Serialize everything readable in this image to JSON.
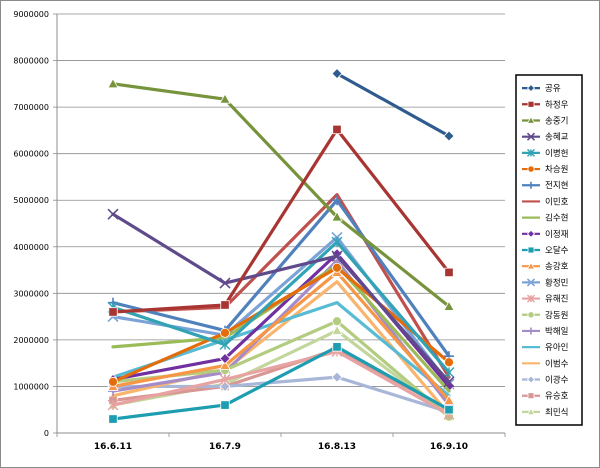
{
  "chart_data": {
    "type": "line",
    "title": "",
    "xlabel": "",
    "ylabel": "",
    "ylim": [
      0,
      9000000
    ],
    "ytick_step": 1000000,
    "grid": true,
    "legend_position": "right",
    "categories": [
      "16.6.11",
      "16.7.9",
      "16.8.13",
      "16.9.10"
    ],
    "series": [
      {
        "name": "공유",
        "color": "#2F5B8F",
        "marker": "diamond",
        "values": [
          null,
          null,
          7720000,
          6380000
        ]
      },
      {
        "name": "하정우",
        "color": "#A83531",
        "marker": "square",
        "values": [
          2600000,
          2750000,
          6520000,
          3450000
        ]
      },
      {
        "name": "송중기",
        "color": "#77933C",
        "marker": "triangle",
        "values": [
          7500000,
          7170000,
          4640000,
          2720000
        ]
      },
      {
        "name": "송혜교",
        "color": "#5F4A8B",
        "marker": "x",
        "values": [
          4700000,
          3220000,
          3800000,
          1100000
        ]
      },
      {
        "name": "이병헌",
        "color": "#31A3B5",
        "marker": "asterisk",
        "values": [
          2700000,
          1900000,
          4100000,
          1300000
        ]
      },
      {
        "name": "차승원",
        "color": "#E46C0A",
        "marker": "circle",
        "values": [
          1100000,
          2150000,
          3550000,
          1520000
        ]
      },
      {
        "name": "전지현",
        "color": "#4F81BD",
        "marker": "plus",
        "values": [
          2800000,
          2200000,
          5000000,
          1650000
        ]
      },
      {
        "name": "이민호",
        "color": "#C0504D",
        "marker": "none",
        "values": [
          2600000,
          2700000,
          5120000,
          1200000
        ]
      },
      {
        "name": "김수현",
        "color": "#9BBB59",
        "marker": "none",
        "values": [
          1850000,
          2050000,
          3600000,
          900000
        ]
      },
      {
        "name": "이정재",
        "color": "#7030A0",
        "marker": "diamond",
        "values": [
          1150000,
          1600000,
          3850000,
          1000000
        ]
      },
      {
        "name": "오달수",
        "color": "#1C9DB0",
        "marker": "square",
        "values": [
          300000,
          600000,
          1850000,
          500000
        ]
      },
      {
        "name": "송강호",
        "color": "#F79646",
        "marker": "triangle",
        "values": [
          1000000,
          1450000,
          3450000,
          700000
        ]
      },
      {
        "name": "황정민",
        "color": "#7BA3D8",
        "marker": "x",
        "values": [
          2500000,
          2100000,
          4200000,
          1050000
        ]
      },
      {
        "name": "유해진",
        "color": "#E7A3A1",
        "marker": "asterisk",
        "values": [
          600000,
          1150000,
          1750000,
          400000
        ]
      },
      {
        "name": "강동원",
        "color": "#B3CC80",
        "marker": "circle",
        "values": [
          1100000,
          1350000,
          2400000,
          350000
        ]
      },
      {
        "name": "박해일",
        "color": "#A48CC9",
        "marker": "plus",
        "values": [
          900000,
          1300000,
          3700000,
          600000
        ]
      },
      {
        "name": "유아인",
        "color": "#58BBD4",
        "marker": "none",
        "values": [
          1200000,
          2000000,
          2800000,
          800000
        ]
      },
      {
        "name": "이범수",
        "color": "#F9B56D",
        "marker": "none",
        "values": [
          800000,
          1350000,
          3250000,
          400000
        ]
      },
      {
        "name": "이광수",
        "color": "#A8B6D8",
        "marker": "diamond",
        "values": [
          1000000,
          1000000,
          1200000,
          450000
        ]
      },
      {
        "name": "유승호",
        "color": "#D89694",
        "marker": "square",
        "values": [
          700000,
          1000000,
          1800000,
          500000
        ]
      },
      {
        "name": "최민식",
        "color": "#C3D69B",
        "marker": "triangle",
        "values": [
          600000,
          1050000,
          2200000,
          350000
        ]
      }
    ]
  }
}
